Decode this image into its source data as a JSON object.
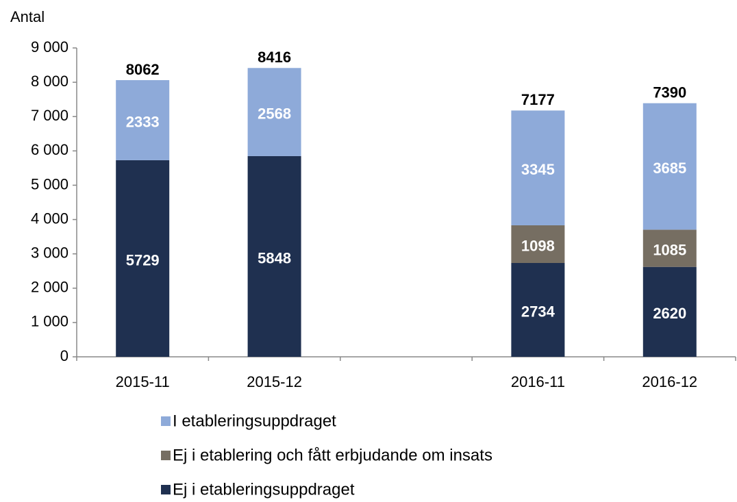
{
  "chart_data": {
    "type": "stacked_bar",
    "y_label": "Antal",
    "categories": [
      "2015-11",
      "2015-12",
      null,
      "2016-11",
      "2016-12"
    ],
    "series": [
      {
        "name": "Ej i etableringsuppdraget",
        "color": "#1f3050",
        "values": [
          5729,
          5848,
          null,
          2734,
          2620
        ]
      },
      {
        "name": "Ej i etablering och fått erbjudande om insats",
        "color": "#766e62",
        "values": [
          null,
          null,
          null,
          1098,
          1085
        ]
      },
      {
        "name": "I etableringsuppdraget",
        "color": "#8eaad9",
        "values": [
          2333,
          2568,
          null,
          3345,
          3685
        ]
      }
    ],
    "totals": [
      8062,
      8416,
      null,
      7177,
      7390
    ],
    "ylim": [
      0,
      9000
    ],
    "yticks": [
      0,
      {
        "value": 1000,
        "label": "1 000"
      },
      {
        "value": 2000,
        "label": "2 000"
      },
      {
        "value": 3000,
        "label": "3 000"
      },
      {
        "value": 4000,
        "label": "4 000"
      },
      {
        "value": 5000,
        "label": "5 000"
      },
      {
        "value": 6000,
        "label": "6 000"
      },
      {
        "value": 7000,
        "label": "7 000"
      },
      {
        "value": 8000,
        "label": "8 000"
      },
      {
        "value": 9000,
        "label": "9 000"
      }
    ],
    "grid": false,
    "legend": "bottom"
  }
}
